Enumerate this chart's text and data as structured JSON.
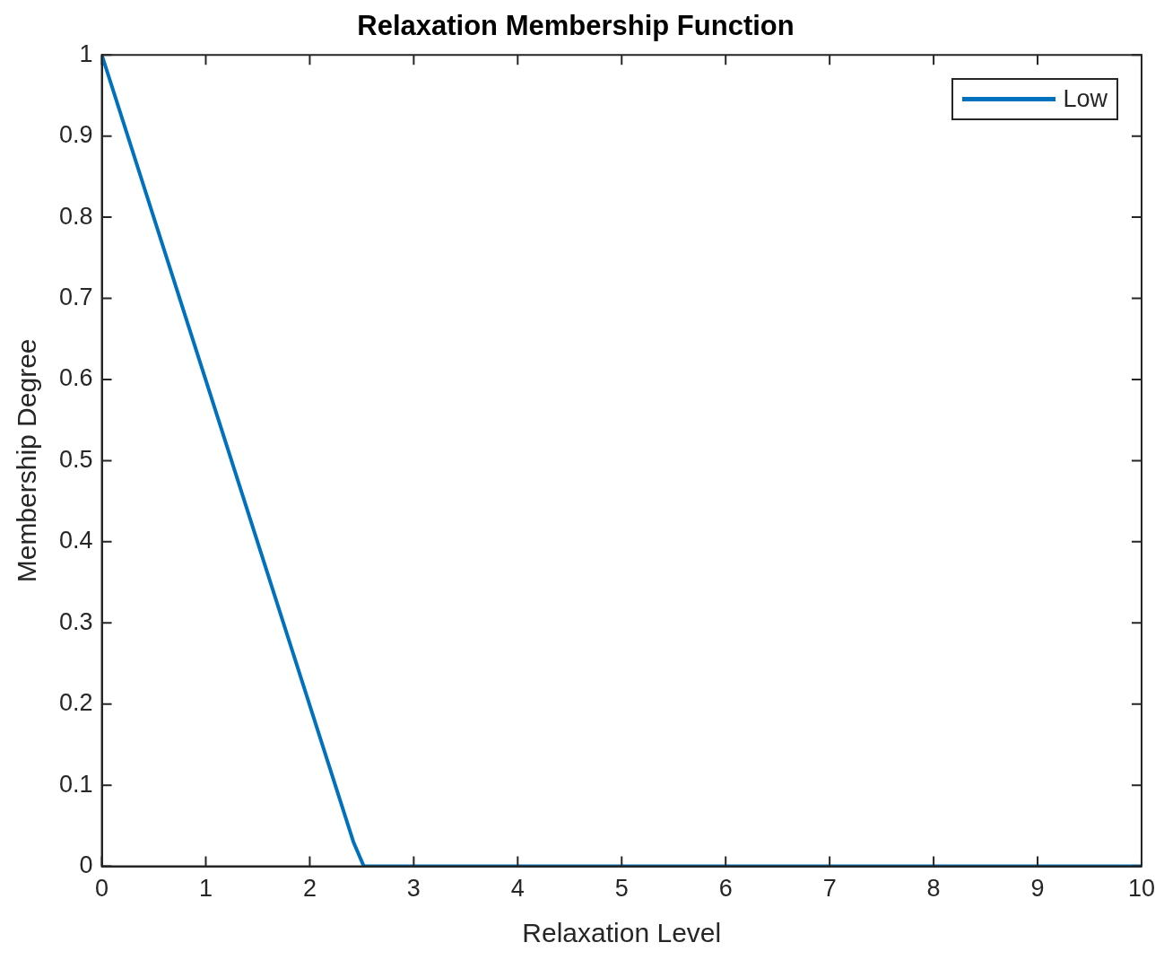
{
  "chart_data": {
    "type": "line",
    "title": "Relaxation Membership Function",
    "xlabel": "Relaxation Level",
    "ylabel": "Membership Degree",
    "series": [
      {
        "name": "Low",
        "color": "#0072bd",
        "x": [
          0,
          2.42,
          2.52,
          10
        ],
        "values": [
          1,
          0.03,
          0,
          0
        ]
      }
    ],
    "xlim": [
      0,
      10
    ],
    "xticks": [
      0,
      1,
      2,
      3,
      4,
      5,
      6,
      7,
      8,
      9,
      10
    ],
    "ylim": [
      0,
      1
    ],
    "yticks": [
      0,
      0.1,
      0.2,
      0.3,
      0.4,
      0.5,
      0.6,
      0.7,
      0.8,
      0.9,
      1
    ],
    "grid": false,
    "legend": "top right",
    "marker": "none",
    "line_style": "solid"
  }
}
